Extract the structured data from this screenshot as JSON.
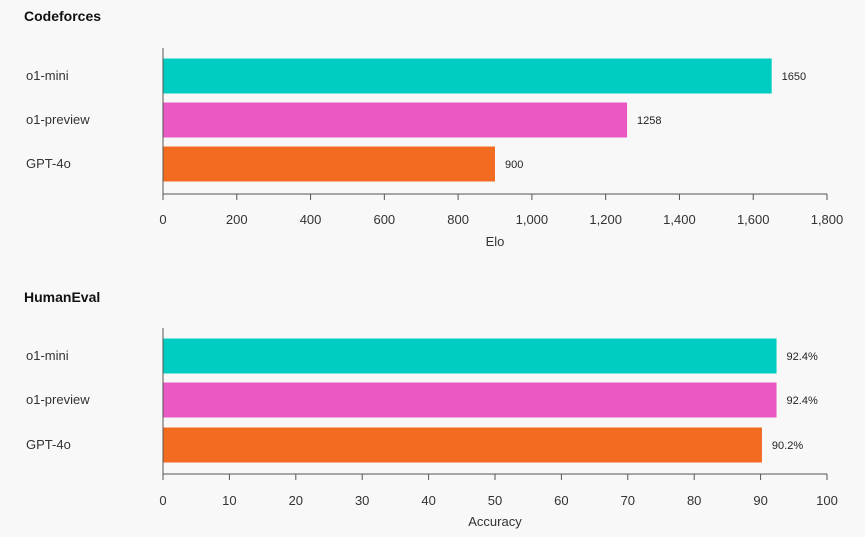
{
  "chart_data": [
    {
      "type": "bar",
      "orientation": "horizontal",
      "title": "Codeforces",
      "xlabel": "Elo",
      "ylabel": "",
      "categories": [
        "o1-mini",
        "o1-preview",
        "GPT-4o"
      ],
      "values": [
        1650,
        1258,
        900
      ],
      "data_labels": [
        "1650",
        "1258",
        "900"
      ],
      "colors": [
        "#00cdc2",
        "#ea58c4",
        "#f26b21"
      ],
      "xlim": [
        0,
        1800
      ],
      "ticks": [
        0,
        200,
        400,
        600,
        800,
        1000,
        1200,
        1400,
        1600,
        1800
      ],
      "tick_labels": [
        "0",
        "200",
        "400",
        "600",
        "800",
        "1,000",
        "1,200",
        "1,400",
        "1,600",
        "1,800"
      ],
      "grid": false
    },
    {
      "type": "bar",
      "orientation": "horizontal",
      "title": "HumanEval",
      "xlabel": "Accuracy",
      "ylabel": "",
      "categories": [
        "o1-mini",
        "o1-preview",
        "GPT-4o"
      ],
      "values": [
        92.4,
        92.4,
        90.2
      ],
      "data_labels": [
        "92.4%",
        "92.4%",
        "90.2%"
      ],
      "colors": [
        "#00cdc2",
        "#ea58c4",
        "#f26b21"
      ],
      "xlim": [
        0,
        100
      ],
      "ticks": [
        0,
        10,
        20,
        30,
        40,
        50,
        60,
        70,
        80,
        90,
        100
      ],
      "tick_labels": [
        "0",
        "10",
        "20",
        "30",
        "40",
        "50",
        "60",
        "70",
        "80",
        "90",
        "100"
      ],
      "grid": false
    }
  ]
}
